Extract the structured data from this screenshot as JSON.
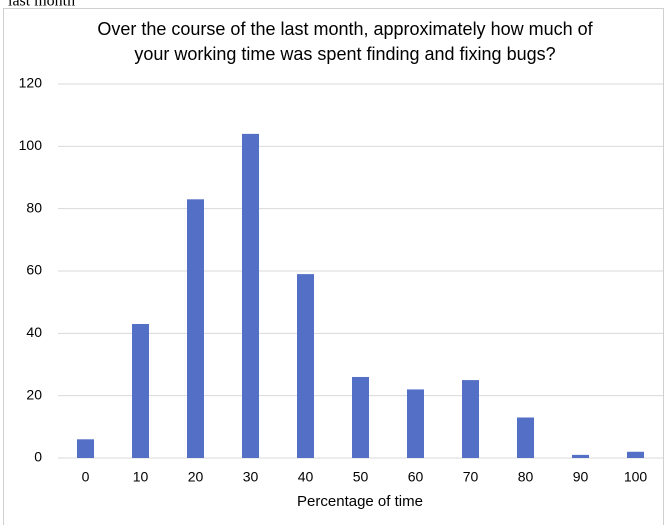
{
  "page_fragment": "last month",
  "chart_data": {
    "type": "bar",
    "title": [
      "Over the course of the last month, approximately how much of",
      "your working time was spent finding and fixing bugs?"
    ],
    "x_label": "Percentage of time",
    "categories": [
      "0",
      "10",
      "20",
      "30",
      "40",
      "50",
      "60",
      "70",
      "80",
      "90",
      "100"
    ],
    "values": [
      6,
      43,
      83,
      104,
      59,
      26,
      22,
      25,
      13,
      1,
      2
    ],
    "color": "#5470c6",
    "ylim": [
      0,
      120
    ],
    "yticks": [
      0,
      20,
      40,
      60,
      80,
      100,
      120
    ],
    "grid": true
  }
}
